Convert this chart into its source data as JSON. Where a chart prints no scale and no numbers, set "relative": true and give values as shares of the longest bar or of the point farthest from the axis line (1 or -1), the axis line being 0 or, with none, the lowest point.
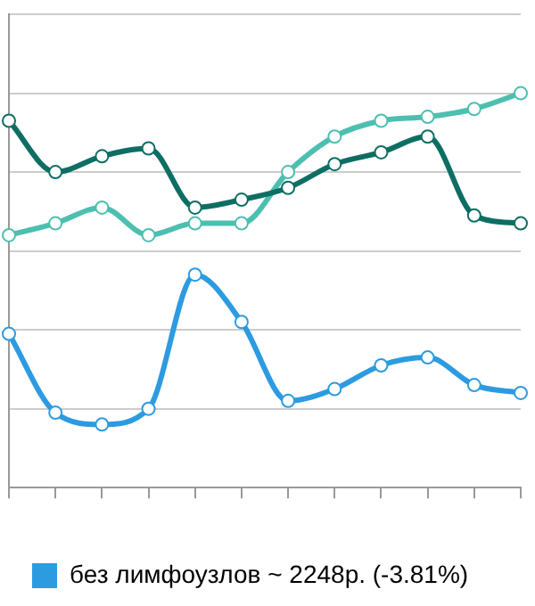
{
  "chart_data": {
    "type": "line",
    "relative": true,
    "categories": [
      null,
      null,
      null,
      null,
      null,
      null,
      null,
      null,
      null,
      null,
      null,
      null
    ],
    "series": [
      {
        "color": "#0e6e64",
        "values": [
          0.93,
          0.8,
          0.84,
          0.86,
          0.71,
          0.73,
          0.76,
          0.82,
          0.85,
          0.89,
          0.69,
          0.67
        ]
      },
      {
        "color": "#4dbfb0",
        "values": [
          0.64,
          0.67,
          0.71,
          0.64,
          0.67,
          0.67,
          0.8,
          0.89,
          0.93,
          0.94,
          0.96,
          1
        ]
      },
      {
        "name": "без лимфоузлов ~ 2248р. (-3.81%)",
        "color": "#2d9be0",
        "values": [
          0.39,
          0.19,
          0.16,
          0.2,
          0.54,
          0.42,
          0.22,
          0.25,
          0.31,
          0.33,
          0.26,
          0.24
        ]
      }
    ],
    "grid": "y",
    "legend": "bottom",
    "marker": "circle",
    "line_style": "solid"
  }
}
